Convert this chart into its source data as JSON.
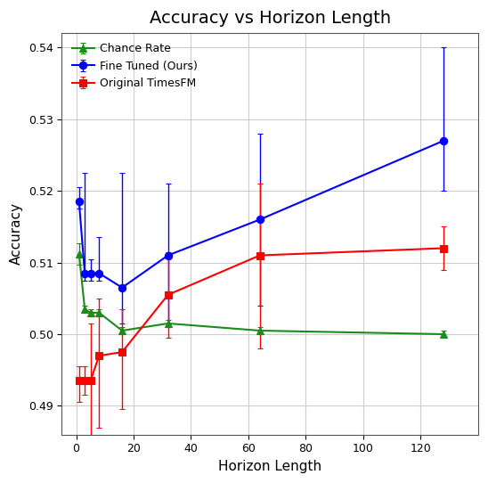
{
  "title": "Accuracy vs Horizon Length",
  "xlabel": "Horizon Length",
  "ylabel": "Accuracy",
  "ylim": [
    0.486,
    0.542
  ],
  "xlim": [
    -5,
    140
  ],
  "chance_rate": {
    "label": "Chance Rate",
    "color": "#1a8c1a",
    "x": [
      1,
      3,
      5,
      8,
      16,
      32,
      64,
      128
    ],
    "y": [
      0.5112,
      0.5035,
      0.503,
      0.503,
      0.5005,
      0.5015,
      0.5005,
      0.5
    ],
    "yerr_low": [
      0.0015,
      0.0005,
      0.0005,
      0.0005,
      0.0005,
      0.0005,
      0.0005,
      0.0005
    ],
    "yerr_high": [
      0.0015,
      0.0005,
      0.0005,
      0.0005,
      0.0005,
      0.0005,
      0.0005,
      0.0005
    ],
    "marker": "^",
    "markersize": 6,
    "linewidth": 1.5
  },
  "fine_tuned": {
    "label": "Fine Tuned (Ours)",
    "color": "#0000ff",
    "x": [
      1,
      3,
      5,
      8,
      16,
      32,
      64,
      128
    ],
    "y": [
      0.5185,
      0.5085,
      0.5085,
      0.5085,
      0.5065,
      0.511,
      0.516,
      0.527
    ],
    "yerr_low": [
      0.001,
      0.001,
      0.001,
      0.001,
      0.005,
      0.01,
      0.012,
      0.007
    ],
    "yerr_high": [
      0.002,
      0.014,
      0.002,
      0.005,
      0.016,
      0.01,
      0.012,
      0.013
    ],
    "marker": "o",
    "markersize": 6,
    "linewidth": 1.5
  },
  "original": {
    "label": "Original TimesFM",
    "color": "#ff0000",
    "x": [
      1,
      3,
      5,
      8,
      16,
      32,
      64,
      128
    ],
    "y": [
      0.4935,
      0.4935,
      0.4935,
      0.497,
      0.4975,
      0.5055,
      0.511,
      0.512
    ],
    "yerr_low": [
      0.003,
      0.002,
      0.008,
      0.01,
      0.008,
      0.006,
      0.013,
      0.003
    ],
    "yerr_high": [
      0.002,
      0.002,
      0.008,
      0.008,
      0.006,
      0.006,
      0.01,
      0.003
    ],
    "marker": "s",
    "markersize": 6,
    "linewidth": 1.5
  },
  "xticks": [
    0,
    20,
    40,
    60,
    80,
    100,
    120
  ],
  "yticks": [
    0.49,
    0.5,
    0.51,
    0.52,
    0.53,
    0.54
  ],
  "grid_color": "#cccccc",
  "background_color": "#ffffff",
  "title_fontsize": 14,
  "label_fontsize": 11,
  "tick_fontsize": 9,
  "legend_fontsize": 9
}
